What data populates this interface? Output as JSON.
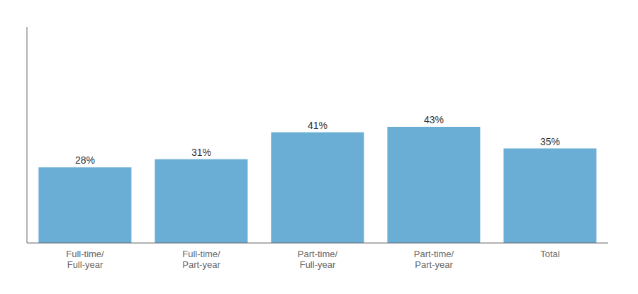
{
  "chart_data": {
    "type": "bar",
    "categories": [
      "Full-time/\nFull-year",
      "Full-time/\nPart-year",
      "Part-time/\nFull-year",
      "Part-time/\nPart-year",
      "Total"
    ],
    "values": [
      28,
      31,
      41,
      43,
      35
    ],
    "value_labels": [
      "28%",
      "31%",
      "41%",
      "43%",
      "35%"
    ],
    "data_labels": true,
    "color": "#6aaed6",
    "ylim": [
      0,
      80
    ],
    "grid": false,
    "tick_labels": "x"
  }
}
